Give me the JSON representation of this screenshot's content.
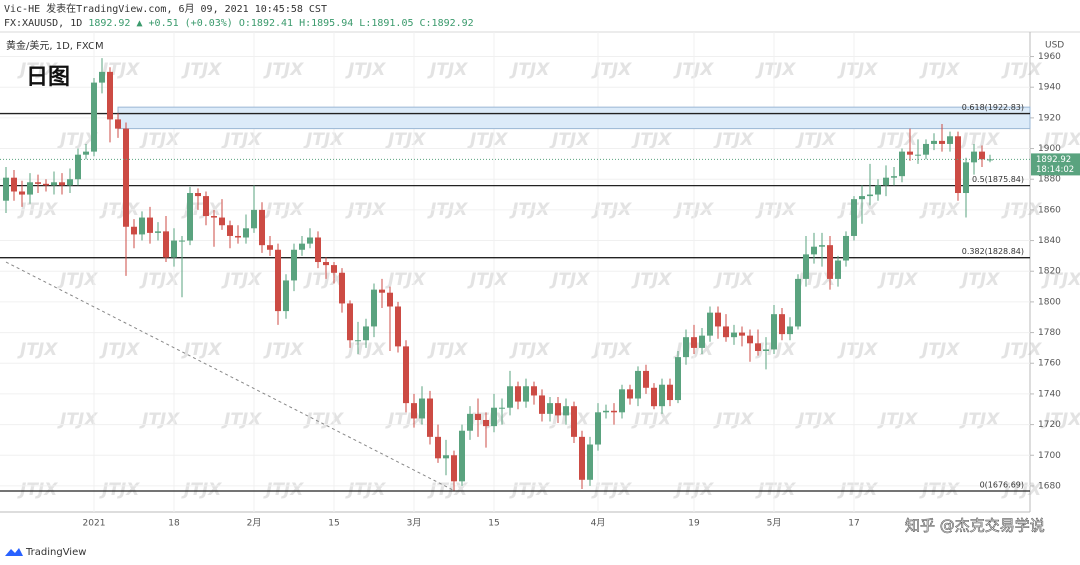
{
  "header": {
    "line1": "Vic-HE 发表在TradingView.com, 6月 09, 2021 10:45:58 CST",
    "line2": [
      "FX:XAUUSD, 1D",
      "1892.92",
      "▲ +0.51 (+0.03%)",
      "O:1892.41",
      "H:1895.94",
      "L:1891.05",
      "C:1892.92"
    ]
  },
  "watermark": "JTJX",
  "footer": {
    "brand": "TradingView",
    "credit": "知乎 @杰克交易学说"
  },
  "chart_data": {
    "type": "candlestick",
    "legend": "黄金/美元, 1D, FXCM",
    "title": "日图",
    "axis_label": "USD",
    "countdown": "18:14:02",
    "up_color": "#5aa37f",
    "down_color": "#cc4b44",
    "grid": true,
    "ylim": [
      1663,
      1976
    ],
    "yticks": [
      1680,
      1700,
      1720,
      1740,
      1760,
      1780,
      1800,
      1820,
      1840,
      1860,
      1880,
      1900,
      1920,
      1940,
      1960
    ],
    "categories": [
      null,
      null,
      null,
      null,
      null,
      null,
      null,
      null,
      null,
      null,
      null,
      "2021",
      null,
      null,
      null,
      null,
      null,
      null,
      null,
      null,
      null,
      "18",
      null,
      null,
      null,
      null,
      null,
      null,
      null,
      null,
      null,
      "2月",
      null,
      null,
      null,
      null,
      null,
      null,
      null,
      null,
      null,
      "15",
      null,
      null,
      null,
      null,
      null,
      null,
      null,
      null,
      null,
      "3月",
      null,
      null,
      null,
      null,
      null,
      null,
      null,
      null,
      null,
      "15",
      null,
      null,
      null,
      null,
      null,
      null,
      null,
      null,
      null,
      null,
      null,
      null,
      "4月",
      null,
      null,
      null,
      null,
      null,
      null,
      null,
      null,
      null,
      null,
      null,
      "19",
      null,
      null,
      null,
      null,
      null,
      null,
      null,
      null,
      null,
      "5月",
      null,
      null,
      null,
      null,
      null,
      null,
      null,
      null,
      null,
      "17",
      null,
      null,
      null,
      null,
      null,
      null,
      null,
      null,
      null,
      null,
      null,
      null,
      null,
      null,
      null,
      null,
      null
    ],
    "open": [
      1866,
      1881,
      1872,
      1870,
      1878,
      1877,
      1876,
      1878,
      1876,
      1880,
      1896,
      1898,
      1943,
      1950,
      1919,
      1913,
      1849,
      1844,
      1855,
      1845,
      1846,
      1829,
      1840,
      1840,
      1871,
      1869,
      1856,
      1855,
      1850,
      1843,
      1842,
      1848,
      1860,
      1837,
      1834,
      1794,
      1814,
      1834,
      1838,
      1842,
      1826,
      1824,
      1819,
      1799,
      1775,
      1775,
      1784,
      1808,
      1806,
      1797,
      1771,
      1734,
      1724,
      1737,
      1712,
      1698,
      1700,
      1683,
      1716,
      1727,
      1723,
      1719,
      1731,
      1731,
      1745,
      1735,
      1745,
      1739,
      1727,
      1734,
      1726,
      1732,
      1712,
      1684,
      1707,
      1728,
      1729,
      1728,
      1743,
      1737,
      1755,
      1744,
      1732,
      1746,
      1736,
      1764,
      1777,
      1770,
      1778,
      1793,
      1784,
      1777,
      1780,
      1778,
      1773,
      1768,
      1769,
      1792,
      1779,
      1784,
      1815,
      1831,
      1836,
      1837,
      1815,
      1827,
      1843,
      1867,
      1869,
      1870,
      1876,
      1881,
      1882,
      1898,
      1896,
      1896,
      1903,
      1905,
      1903,
      1908,
      1871,
      1891,
      1898,
      1892.41
    ],
    "high": [
      1888,
      1886,
      1879,
      1884,
      1883,
      1880,
      1885,
      1884,
      1887,
      1900,
      1903,
      1946,
      1959,
      1953,
      1923,
      1917,
      1854,
      1859,
      1862,
      1852,
      1856,
      1848,
      1843,
      1875,
      1874,
      1872,
      1860,
      1867,
      1853,
      1850,
      1857,
      1876,
      1865,
      1843,
      1838,
      1818,
      1838,
      1843,
      1848,
      1846,
      1829,
      1826,
      1822,
      1801,
      1787,
      1789,
      1812,
      1815,
      1810,
      1800,
      1775,
      1740,
      1745,
      1742,
      1720,
      1710,
      1703,
      1720,
      1732,
      1737,
      1728,
      1740,
      1737,
      1755,
      1748,
      1750,
      1748,
      1743,
      1738,
      1738,
      1737,
      1735,
      1716,
      1712,
      1734,
      1733,
      1734,
      1746,
      1746,
      1758,
      1759,
      1747,
      1750,
      1750,
      1768,
      1782,
      1785,
      1783,
      1797,
      1797,
      1792,
      1785,
      1784,
      1782,
      1782,
      1777,
      1798,
      1796,
      1790,
      1818,
      1843,
      1845,
      1845,
      1843,
      1830,
      1846,
      1869,
      1876,
      1890,
      1880,
      1889,
      1888,
      1900,
      1913,
      1906,
      1906,
      1910,
      1916,
      1911,
      1911,
      1894,
      1903,
      1902,
      1895.94
    ],
    "low": [
      1858,
      1866,
      1862,
      1864,
      1871,
      1872,
      1870,
      1870,
      1871,
      1876,
      1893,
      1895,
      1936,
      1904,
      1907,
      1817,
      1835,
      1840,
      1838,
      1840,
      1826,
      1823,
      1803,
      1837,
      1860,
      1850,
      1836,
      1847,
      1835,
      1838,
      1838,
      1845,
      1832,
      1830,
      1785,
      1789,
      1807,
      1830,
      1835,
      1822,
      1815,
      1812,
      1793,
      1770,
      1766,
      1770,
      1777,
      1796,
      1768,
      1767,
      1728,
      1718,
      1720,
      1707,
      1695,
      1687,
      1677,
      1680,
      1710,
      1712,
      1705,
      1715,
      1720,
      1726,
      1730,
      1731,
      1733,
      1722,
      1722,
      1721,
      1720,
      1708,
      1678,
      1680,
      1703,
      1724,
      1720,
      1724,
      1733,
      1732,
      1740,
      1730,
      1727,
      1732,
      1734,
      1759,
      1766,
      1766,
      1774,
      1776,
      1774,
      1772,
      1771,
      1761,
      1765,
      1756,
      1766,
      1775,
      1775,
      1782,
      1810,
      1825,
      1823,
      1808,
      1810,
      1823,
      1840,
      1851,
      1863,
      1866,
      1869,
      1876,
      1878,
      1892,
      1890,
      1893,
      1899,
      1898,
      1898,
      1866,
      1855,
      1883,
      1888,
      1891.05
    ],
    "close": [
      1881,
      1872,
      1870,
      1878,
      1877,
      1876,
      1878,
      1876,
      1880,
      1896,
      1898,
      1943,
      1950,
      1919,
      1913,
      1849,
      1844,
      1855,
      1845,
      1846,
      1829,
      1840,
      1840,
      1871,
      1869,
      1856,
      1855,
      1850,
      1843,
      1842,
      1848,
      1860,
      1837,
      1834,
      1794,
      1814,
      1834,
      1838,
      1842,
      1826,
      1824,
      1819,
      1799,
      1775,
      1775,
      1784,
      1808,
      1806,
      1797,
      1771,
      1734,
      1724,
      1737,
      1712,
      1698,
      1700,
      1683,
      1716,
      1727,
      1723,
      1719,
      1731,
      1731,
      1745,
      1735,
      1745,
      1739,
      1727,
      1734,
      1726,
      1732,
      1712,
      1684,
      1707,
      1728,
      1729,
      1728,
      1743,
      1737,
      1755,
      1744,
      1732,
      1746,
      1736,
      1764,
      1777,
      1770,
      1778,
      1793,
      1784,
      1777,
      1780,
      1778,
      1773,
      1768,
      1769,
      1792,
      1779,
      1784,
      1815,
      1831,
      1836,
      1837,
      1815,
      1827,
      1843,
      1867,
      1869,
      1870,
      1876,
      1881,
      1882,
      1898,
      1896,
      1896,
      1903,
      1905,
      1903,
      1908,
      1871,
      1891,
      1898,
      1893,
      1892.92
    ],
    "levels": [
      {
        "value": 1922.83,
        "label": "0.618(1922.83)"
      },
      {
        "value": 1875.84,
        "label": "0.5(1875.84)"
      },
      {
        "value": 1828.84,
        "label": "0.382(1828.84)"
      },
      {
        "value": 1676.69,
        "label": "0(1676.69)"
      }
    ],
    "zone": {
      "start": 14,
      "low": 1913,
      "high": 1927
    },
    "trendline": {
      "start": [
        0,
        1826
      ],
      "end": [
        56,
        1677
      ]
    }
  }
}
